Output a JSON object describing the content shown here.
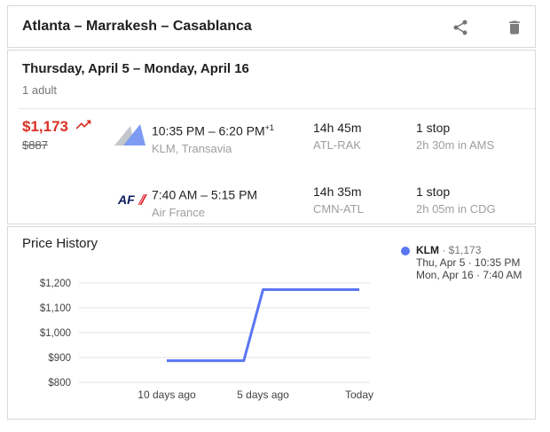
{
  "header": {
    "title": "Atlanta – Marrakesh – Casablanca"
  },
  "trip": {
    "dates": "Thursday, April 5 – Monday, April 16",
    "passengers": "1 adult"
  },
  "price": {
    "current": "$1,173",
    "previous": "$887"
  },
  "flights": [
    {
      "logo": "klm-transavia-logo",
      "time": "10:35 PM – 6:20 PM",
      "time_superscript": "+1",
      "airlines": "KLM, Transavia",
      "duration": "14h 45m",
      "route": "ATL-RAK",
      "stops": "1 stop",
      "layover": "2h 30m in AMS"
    },
    {
      "logo": "air-france-logo",
      "logo_text": "AF",
      "time": "7:40 AM – 5:15 PM",
      "time_superscript": "",
      "airlines": "Air France",
      "duration": "14h 35m",
      "route": "CMN-ATL",
      "stops": "1 stop",
      "layover": "2h 05m in CDG"
    }
  ],
  "price_history": {
    "title": "Price History",
    "legend": {
      "airline": "KLM",
      "price_part": " · $1,173",
      "depart": "Thu, Apr 5 · 10:35 PM",
      "return": "Mon, Apr 16 · 7:40 AM"
    }
  },
  "chart_data": {
    "type": "line",
    "title": "Price History",
    "xlabel": "",
    "ylabel": "",
    "xlim": [
      -10,
      0
    ],
    "ylim": [
      800,
      1200
    ],
    "grid": true,
    "legend_position": "top-right",
    "y_ticks": [
      {
        "value": 800,
        "label": "$800"
      },
      {
        "value": 900,
        "label": "$900"
      },
      {
        "value": 1000,
        "label": "$1,000"
      },
      {
        "value": 1100,
        "label": "$1,100"
      },
      {
        "value": 1200,
        "label": "$1,200"
      }
    ],
    "x_ticks": [
      {
        "value": -10,
        "label": "10 days ago"
      },
      {
        "value": -5,
        "label": "5 days ago"
      },
      {
        "value": 0,
        "label": "Today"
      }
    ],
    "series": [
      {
        "name": "KLM",
        "color": "#5b76f3",
        "points": [
          [
            -10,
            887
          ],
          [
            -6,
            887
          ],
          [
            -5,
            1173
          ],
          [
            0,
            1173
          ]
        ]
      }
    ]
  },
  "colors": {
    "price_up_red": "#d93025",
    "line_blue": "#5b76f3",
    "text_primary": "#212121",
    "text_secondary": "#9e9e9e",
    "grid_gray": "#e3e3e3",
    "icon_gray": "#7d7d7d",
    "af_navy": "#0b1b5e",
    "af_red": "#e2202c",
    "klm_gray": "#c3c6ca",
    "klm_blue": "#7d9bf2"
  }
}
